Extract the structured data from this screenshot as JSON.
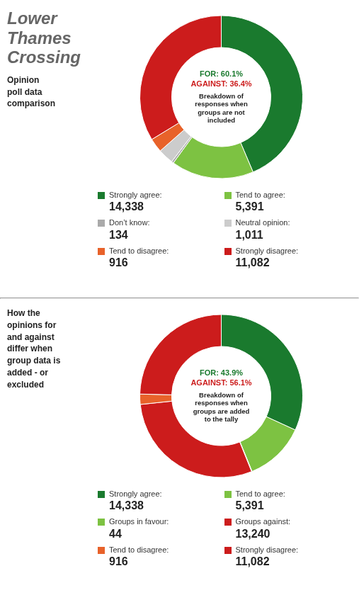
{
  "chart_data": [
    {
      "type": "donut",
      "title": "Lower\nThames\nCrossing",
      "subtitle": "Opinion\npoll data\ncomparison",
      "categories": [
        "Strongly agree:",
        "Tend to agree:",
        "Don’t know:",
        "Neutral opinion:",
        "Tend to disagree:",
        "Strongly disagree:"
      ],
      "values": [
        14338,
        5391,
        134,
        1011,
        916,
        11082
      ],
      "value_labels": [
        "14,338",
        "5,391",
        "134",
        "1,011",
        "916",
        "11,082"
      ],
      "colors": [
        "#1a7a2e",
        "#7dc242",
        "#aaaaaa",
        "#cccccc",
        "#e8622a",
        "#cc1c1c"
      ],
      "annotations": [
        {
          "text": "FOR: 60.1%",
          "color": "#1a7a2e"
        },
        {
          "text": "AGAINST: 36.4%",
          "color": "#cc1c1c"
        },
        {
          "text": "Breakdown of\nresponses when\ngroups are not\nincluded"
        }
      ]
    },
    {
      "type": "donut",
      "subtitle": "How the\nopinions for\nand against\ndiffer when\ngroup data is\nadded - or\nexcluded",
      "categories": [
        "Strongly agree:",
        "Tend to agree:",
        "Groups in favour:",
        "Groups against:",
        "Tend to disagree:",
        "Strongly disagree:"
      ],
      "values": [
        14338,
        5391,
        44,
        13240,
        916,
        11082
      ],
      "value_labels": [
        "14,338",
        "5,391",
        "44",
        "13,240",
        "916",
        "11,082"
      ],
      "colors": [
        "#1a7a2e",
        "#7dc242",
        "#7dc242",
        "#cc1c1c",
        "#e8622a",
        "#cc1c1c"
      ],
      "annotations": [
        {
          "text": "FOR: 43.9%",
          "color": "#1a7a2e"
        },
        {
          "text": "AGAINST: 56.1%",
          "color": "#cc1c1c"
        },
        {
          "text": "Breakdown of\nresponses when\ngroups are added\nto the tally"
        }
      ]
    }
  ]
}
